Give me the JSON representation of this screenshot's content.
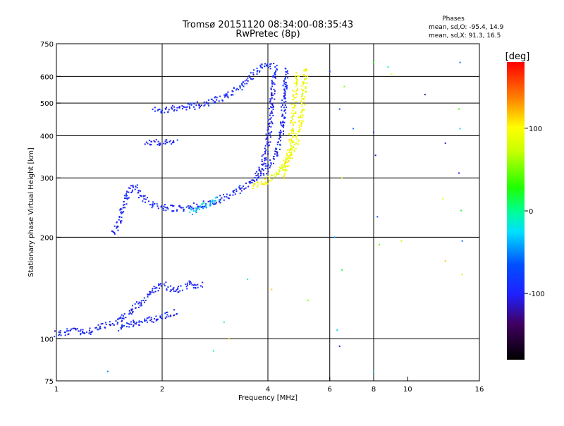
{
  "chart_data": {
    "type": "scatter",
    "title": "Tromsø 20151120 08:34:00-08:35:43",
    "subtitle": "RwPretec (8p)",
    "xlabel": "Frequency [MHz]",
    "ylabel": "Stationary phase Virtual Height [km]",
    "x_scale": "log",
    "y_scale": "log",
    "xlim": [
      1,
      16
    ],
    "ylim": [
      75,
      750
    ],
    "x_ticks": [
      1,
      2,
      4,
      6,
      8,
      10,
      16
    ],
    "x_tick_labels": [
      "1",
      "2",
      "4",
      "6",
      "8",
      "10",
      "16"
    ],
    "y_ticks": [
      75,
      100,
      200,
      300,
      400,
      500,
      600,
      750
    ],
    "y_tick_labels": [
      "75",
      "100",
      "200",
      "300",
      "400",
      "500",
      "600",
      "750"
    ],
    "x_grid": [
      2,
      4,
      6,
      8
    ],
    "y_grid": [
      100,
      200,
      300,
      400,
      500,
      600
    ],
    "grid": true,
    "colorbar": {
      "label": "[deg]",
      "range": [
        -180,
        180
      ],
      "ticks": [
        100,
        0,
        -100
      ],
      "tick_labels": [
        "100",
        "0",
        "-100"
      ]
    },
    "stats": {
      "title": "Phases",
      "o_line": "mean, sd,O: -95.4, 14.9",
      "x_line": "mean, sd,X: 91.3, 16.5"
    },
    "series": [
      {
        "trace": "lower-E",
        "phase_deg": -95,
        "points": [
          [
            1.0,
            103
          ],
          [
            1.1,
            106
          ],
          [
            1.2,
            104
          ],
          [
            1.3,
            107
          ],
          [
            1.4,
            110
          ],
          [
            1.5,
            113
          ],
          [
            1.6,
            118
          ],
          [
            1.7,
            125
          ],
          [
            1.8,
            133
          ],
          [
            1.9,
            140
          ],
          [
            2.0,
            145
          ],
          [
            2.1,
            141
          ],
          [
            2.2,
            138
          ],
          [
            2.3,
            142
          ],
          [
            2.4,
            146
          ],
          [
            2.5,
            143
          ],
          [
            2.6,
            146
          ]
        ]
      },
      {
        "trace": "lower-E-band",
        "phase_deg": -95,
        "points": [
          [
            1.5,
            107
          ],
          [
            1.6,
            110
          ],
          [
            1.7,
            112
          ],
          [
            1.8,
            113
          ],
          [
            1.9,
            114
          ],
          [
            2.0,
            116
          ],
          [
            2.1,
            118
          ],
          [
            2.2,
            120
          ]
        ]
      },
      {
        "trace": "F-O-low",
        "phase_deg": -95,
        "points": [
          [
            1.45,
            205
          ],
          [
            1.5,
            220
          ],
          [
            1.55,
            245
          ],
          [
            1.6,
            270
          ],
          [
            1.65,
            285
          ],
          [
            1.7,
            275
          ],
          [
            1.8,
            258
          ],
          [
            1.9,
            250
          ],
          [
            2.0,
            245
          ],
          [
            2.2,
            243
          ],
          [
            2.4,
            246
          ],
          [
            2.6,
            250
          ],
          [
            2.8,
            255
          ],
          [
            3.0,
            262
          ],
          [
            3.2,
            270
          ],
          [
            3.4,
            280
          ],
          [
            3.6,
            292
          ],
          [
            3.8,
            305
          ],
          [
            4.0,
            322
          ],
          [
            4.2,
            350
          ],
          [
            4.3,
            380
          ],
          [
            4.4,
            430
          ],
          [
            4.45,
            500
          ],
          [
            4.5,
            580
          ],
          [
            4.55,
            640
          ]
        ]
      },
      {
        "trace": "F-O-high",
        "phase_deg": -95,
        "points": [
          [
            1.9,
            480
          ],
          [
            2.0,
            478
          ],
          [
            2.2,
            482
          ],
          [
            2.4,
            488
          ],
          [
            2.6,
            495
          ],
          [
            2.8,
            505
          ],
          [
            3.0,
            520
          ],
          [
            3.2,
            540
          ],
          [
            3.4,
            565
          ],
          [
            3.6,
            600
          ],
          [
            3.8,
            640
          ],
          [
            4.0,
            650
          ],
          [
            4.2,
            640
          ]
        ]
      },
      {
        "trace": "F-O-cusp",
        "phase_deg": -100,
        "points": [
          [
            3.7,
            300
          ],
          [
            3.8,
            315
          ],
          [
            3.9,
            340
          ],
          [
            4.0,
            380
          ],
          [
            4.05,
            430
          ],
          [
            4.1,
            500
          ],
          [
            4.15,
            580
          ],
          [
            4.2,
            640
          ]
        ]
      },
      {
        "trace": "F-O-upper-arm",
        "phase_deg": -95,
        "points": [
          [
            1.8,
            380
          ],
          [
            1.9,
            383
          ],
          [
            2.0,
            380
          ],
          [
            2.1,
            385
          ],
          [
            2.2,
            382
          ]
        ]
      },
      {
        "trace": "F-O-cyan-segment",
        "phase_deg": -30,
        "points": [
          [
            2.4,
            238
          ],
          [
            2.5,
            243
          ],
          [
            2.6,
            248
          ],
          [
            2.7,
            250
          ],
          [
            2.8,
            256
          ],
          [
            2.9,
            262
          ]
        ]
      },
      {
        "trace": "F-X",
        "phase_deg": 90,
        "points": [
          [
            3.6,
            282
          ],
          [
            3.8,
            288
          ],
          [
            4.0,
            295
          ],
          [
            4.2,
            305
          ],
          [
            4.4,
            322
          ],
          [
            4.6,
            345
          ],
          [
            4.8,
            380
          ],
          [
            4.9,
            420
          ],
          [
            5.0,
            470
          ],
          [
            5.05,
            520
          ],
          [
            5.1,
            580
          ],
          [
            5.1,
            640
          ]
        ]
      },
      {
        "trace": "F-X-inner",
        "phase_deg": 95,
        "points": [
          [
            4.4,
            300
          ],
          [
            4.5,
            320
          ],
          [
            4.6,
            360
          ],
          [
            4.7,
            420
          ],
          [
            4.75,
            500
          ],
          [
            4.8,
            560
          ],
          [
            4.85,
            620
          ]
        ]
      },
      {
        "trace": "scattered",
        "phase_deg": -20,
        "points": [
          [
            1.4,
            80
          ],
          [
            2.8,
            92
          ],
          [
            3.1,
            100
          ],
          [
            3.0,
            112
          ],
          [
            3.5,
            150
          ],
          [
            4.1,
            140
          ],
          [
            5.2,
            130
          ],
          [
            6.3,
            106
          ],
          [
            6.5,
            160
          ],
          [
            6.4,
            95
          ],
          [
            6.2,
            200
          ],
          [
            6.5,
            300
          ],
          [
            6.4,
            480
          ],
          [
            6.6,
            560
          ],
          [
            7.0,
            420
          ],
          [
            8.0,
            410
          ],
          [
            8.1,
            350
          ],
          [
            8.2,
            230
          ],
          [
            8.3,
            190
          ],
          [
            8.0,
            660
          ],
          [
            8.0,
            80
          ],
          [
            8.8,
            640
          ],
          [
            9.6,
            195
          ],
          [
            11.2,
            530
          ],
          [
            12.8,
            380
          ],
          [
            12.6,
            260
          ],
          [
            12.8,
            170
          ],
          [
            14.0,
            310
          ],
          [
            14.1,
            420
          ],
          [
            14.2,
            240
          ],
          [
            14.3,
            155
          ],
          [
            14.3,
            195
          ],
          [
            14.1,
            660
          ],
          [
            14.0,
            480
          ],
          [
            6.0,
            620
          ],
          [
            9.0,
            610
          ]
        ]
      }
    ]
  }
}
